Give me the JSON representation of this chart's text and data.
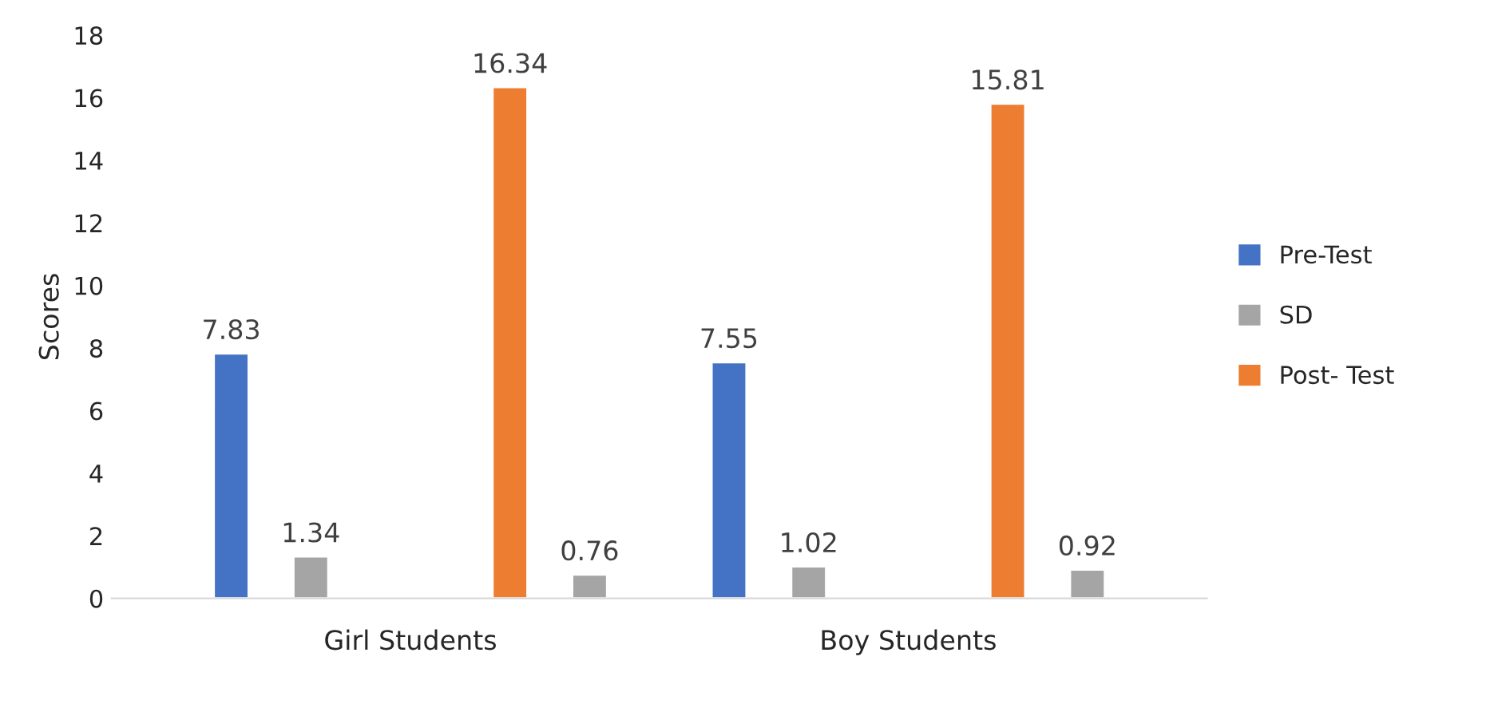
{
  "chart_data": {
    "type": "bar",
    "ylabel": "Scores",
    "categories": [
      "Girl Students",
      "Boy Students"
    ],
    "series": [
      {
        "name": "Pre-Test",
        "color": "#4472c4",
        "values": [
          7.83,
          7.55
        ]
      },
      {
        "name": "SD",
        "color": "#a5a5a5",
        "values": [
          1.34,
          1.02
        ]
      },
      {
        "name": "Post- Test",
        "color": "#ed7d31",
        "values": [
          16.34,
          15.81
        ]
      },
      {
        "color": "#a5a5a5",
        "values": [
          0.76,
          0.92
        ]
      }
    ],
    "ylim": [
      0,
      18
    ],
    "yticks": [
      0,
      2,
      4,
      6,
      8,
      10,
      12,
      14,
      16,
      18
    ],
    "data_labels": true,
    "grid": false,
    "legend": "right"
  }
}
